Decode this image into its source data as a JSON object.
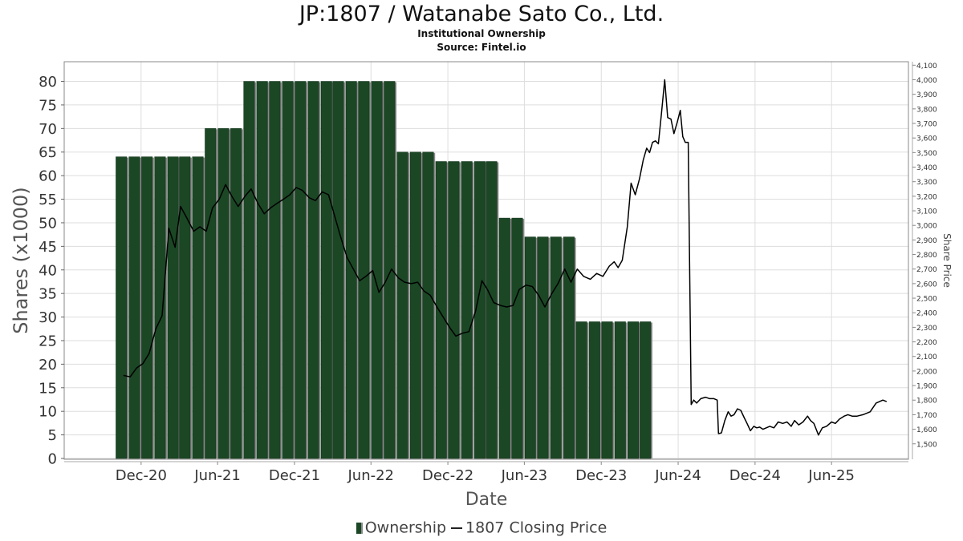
{
  "header": {
    "title": "JP:1807 / Watanabe Sato Co., Ltd.",
    "subtitle": "Institutional Ownership",
    "source": "Source: Fintel.io"
  },
  "legend": {
    "ownership_label": "Ownership",
    "price_label": "1807 Closing Price"
  },
  "colors": {
    "bar": "#1b4725",
    "bar_shadow": "#8a8a8a",
    "line": "#000000",
    "grid": "#dddddd"
  },
  "chart_data": {
    "type": "bar",
    "title": "JP:1807 / Watanabe Sato Co., Ltd.",
    "xlabel": "Date",
    "ylabel": "Shares (x1000)",
    "y2label": "Share Price",
    "ylim": [
      0,
      84
    ],
    "y2lim": [
      1430,
      4100
    ],
    "yticks": [
      0,
      5,
      10,
      15,
      20,
      25,
      30,
      35,
      40,
      45,
      50,
      55,
      60,
      65,
      70,
      75,
      80
    ],
    "y2ticks": [
      1500,
      1600,
      1700,
      1800,
      1900,
      2000,
      2100,
      2200,
      2300,
      2400,
      2500,
      2600,
      2700,
      2800,
      2900,
      3000,
      3100,
      3200,
      3300,
      3400,
      3500,
      3600,
      3700,
      3800,
      3900,
      4000,
      4100
    ],
    "y2tick_labels": [
      "1,500",
      "1,600",
      "1,700",
      "1,800",
      "1,900",
      "2,000",
      "2,100",
      "2,200",
      "2,300",
      "2,400",
      "2,500",
      "2,600",
      "2,700",
      "2,800",
      "2,900",
      "3,000",
      "3,100",
      "3,200",
      "3,300",
      "3,400",
      "3,500",
      "3,600",
      "3,700",
      "3,800",
      "3,900",
      "4,000",
      "4,100"
    ],
    "xlim": [
      "2020-06-01",
      "2025-12-01"
    ],
    "xticks": [
      {
        "label": "Dec-20",
        "date": "2020-12-01"
      },
      {
        "label": "Jun-21",
        "date": "2021-06-01"
      },
      {
        "label": "Dec-21",
        "date": "2021-12-01"
      },
      {
        "label": "Jun-22",
        "date": "2022-06-01"
      },
      {
        "label": "Dec-22",
        "date": "2022-12-01"
      },
      {
        "label": "Jun-23",
        "date": "2023-06-01"
      },
      {
        "label": "Dec-23",
        "date": "2023-12-01"
      },
      {
        "label": "Jun-24",
        "date": "2024-06-01"
      },
      {
        "label": "Dec-24",
        "date": "2024-12-01"
      },
      {
        "label": "Jun-25",
        "date": "2025-06-01"
      }
    ],
    "ownership": {
      "name": "Ownership",
      "dates": [
        "2020-10-15",
        "2020-11-15",
        "2020-12-15",
        "2021-01-15",
        "2021-02-15",
        "2021-03-15",
        "2021-04-15",
        "2021-05-15",
        "2021-06-15",
        "2021-07-15",
        "2021-08-15",
        "2021-09-15",
        "2021-10-15",
        "2021-11-15",
        "2021-12-15",
        "2022-01-15",
        "2022-02-15",
        "2022-03-15",
        "2022-04-15",
        "2022-05-15",
        "2022-06-15",
        "2022-07-15",
        "2022-08-15",
        "2022-09-15",
        "2022-10-15",
        "2022-11-15",
        "2022-12-15",
        "2023-01-15",
        "2023-02-15",
        "2023-03-15",
        "2023-04-15",
        "2023-05-15",
        "2023-06-15",
        "2023-07-15",
        "2023-08-15",
        "2023-09-15",
        "2023-10-15",
        "2023-11-15",
        "2023-12-15",
        "2024-01-15",
        "2024-02-15",
        "2024-03-15"
      ],
      "values": [
        64,
        64,
        64,
        64,
        64,
        64,
        64,
        70,
        70,
        70,
        80,
        80,
        80,
        80,
        80,
        80,
        80,
        80,
        80,
        80,
        80,
        80,
        65,
        65,
        65,
        63,
        63,
        63,
        63,
        63,
        51,
        51,
        47,
        47,
        47,
        47,
        29,
        29,
        29,
        29,
        29,
        29
      ]
    },
    "price": {
      "name": "1807 Closing Price",
      "points": [
        [
          "2020-10-20",
          1970
        ],
        [
          "2020-11-05",
          1960
        ],
        [
          "2020-11-20",
          2020
        ],
        [
          "2020-12-05",
          2050
        ],
        [
          "2020-12-20",
          2120
        ],
        [
          "2021-01-05",
          2290
        ],
        [
          "2021-01-20",
          2380
        ],
        [
          "2021-02-05",
          2980
        ],
        [
          "2021-02-20",
          2850
        ],
        [
          "2021-03-05",
          3130
        ],
        [
          "2021-03-20",
          3050
        ],
        [
          "2021-04-05",
          2960
        ],
        [
          "2021-04-20",
          2990
        ],
        [
          "2021-05-05",
          2960
        ],
        [
          "2021-05-20",
          3120
        ],
        [
          "2021-06-05",
          3180
        ],
        [
          "2021-06-20",
          3280
        ],
        [
          "2021-07-05",
          3200
        ],
        [
          "2021-07-20",
          3130
        ],
        [
          "2021-08-05",
          3200
        ],
        [
          "2021-08-20",
          3250
        ],
        [
          "2021-09-05",
          3150
        ],
        [
          "2021-09-20",
          3080
        ],
        [
          "2021-10-05",
          3120
        ],
        [
          "2021-10-20",
          3150
        ],
        [
          "2021-11-05",
          3180
        ],
        [
          "2021-11-20",
          3210
        ],
        [
          "2021-12-05",
          3260
        ],
        [
          "2021-12-20",
          3240
        ],
        [
          "2022-01-05",
          3190
        ],
        [
          "2022-01-20",
          3170
        ],
        [
          "2022-02-05",
          3230
        ],
        [
          "2022-02-20",
          3210
        ],
        [
          "2022-03-05",
          3080
        ],
        [
          "2022-03-20",
          2930
        ],
        [
          "2022-04-05",
          2780
        ],
        [
          "2022-04-20",
          2700
        ],
        [
          "2022-05-05",
          2620
        ],
        [
          "2022-05-20",
          2650
        ],
        [
          "2022-06-05",
          2690
        ],
        [
          "2022-06-20",
          2540
        ],
        [
          "2022-07-05",
          2610
        ],
        [
          "2022-07-20",
          2700
        ],
        [
          "2022-08-05",
          2640
        ],
        [
          "2022-08-20",
          2610
        ],
        [
          "2022-09-05",
          2600
        ],
        [
          "2022-09-20",
          2610
        ],
        [
          "2022-10-05",
          2550
        ],
        [
          "2022-10-20",
          2520
        ],
        [
          "2022-11-05",
          2440
        ],
        [
          "2022-11-20",
          2370
        ],
        [
          "2022-12-05",
          2300
        ],
        [
          "2022-12-20",
          2240
        ],
        [
          "2023-01-05",
          2260
        ],
        [
          "2023-01-20",
          2270
        ],
        [
          "2023-02-05",
          2410
        ],
        [
          "2023-02-20",
          2620
        ],
        [
          "2023-03-05",
          2560
        ],
        [
          "2023-03-20",
          2470
        ],
        [
          "2023-04-05",
          2450
        ],
        [
          "2023-04-20",
          2440
        ],
        [
          "2023-05-05",
          2450
        ],
        [
          "2023-05-20",
          2560
        ],
        [
          "2023-06-05",
          2590
        ],
        [
          "2023-06-20",
          2580
        ],
        [
          "2023-07-05",
          2520
        ],
        [
          "2023-07-20",
          2440
        ],
        [
          "2023-08-05",
          2530
        ],
        [
          "2023-08-20",
          2600
        ],
        [
          "2023-09-05",
          2700
        ],
        [
          "2023-09-20",
          2610
        ],
        [
          "2023-10-05",
          2700
        ],
        [
          "2023-10-20",
          2650
        ],
        [
          "2023-11-05",
          2630
        ],
        [
          "2023-11-20",
          2670
        ],
        [
          "2023-12-05",
          2650
        ],
        [
          "2023-12-20",
          2720
        ],
        [
          "2024-01-01",
          2750
        ],
        [
          "2024-01-10",
          2710
        ],
        [
          "2024-01-20",
          2760
        ],
        [
          "2024-02-01",
          2990
        ],
        [
          "2024-02-10",
          3290
        ],
        [
          "2024-02-20",
          3210
        ],
        [
          "2024-03-01",
          3320
        ],
        [
          "2024-03-10",
          3450
        ],
        [
          "2024-03-18",
          3530
        ],
        [
          "2024-03-25",
          3500
        ],
        [
          "2024-04-01",
          3570
        ],
        [
          "2024-04-08",
          3580
        ],
        [
          "2024-04-15",
          3560
        ],
        [
          "2024-04-22",
          3760
        ],
        [
          "2024-04-30",
          4000
        ],
        [
          "2024-05-07",
          3740
        ],
        [
          "2024-05-15",
          3730
        ],
        [
          "2024-05-22",
          3630
        ],
        [
          "2024-05-30",
          3710
        ],
        [
          "2024-06-06",
          3790
        ],
        [
          "2024-06-12",
          3610
        ],
        [
          "2024-06-18",
          3570
        ],
        [
          "2024-06-25",
          3570
        ],
        [
          "2024-07-02",
          1770
        ],
        [
          "2024-07-08",
          1800
        ],
        [
          "2024-07-15",
          1780
        ],
        [
          "2024-07-25",
          1810
        ],
        [
          "2024-08-05",
          1820
        ],
        [
          "2024-08-15",
          1810
        ],
        [
          "2024-08-25",
          1810
        ],
        [
          "2024-09-02",
          1800
        ],
        [
          "2024-09-05",
          1570
        ],
        [
          "2024-09-12",
          1575
        ],
        [
          "2024-09-20",
          1660
        ],
        [
          "2024-09-28",
          1720
        ],
        [
          "2024-10-05",
          1690
        ],
        [
          "2024-10-12",
          1700
        ],
        [
          "2024-10-20",
          1740
        ],
        [
          "2024-10-28",
          1730
        ],
        [
          "2024-11-05",
          1680
        ],
        [
          "2024-11-12",
          1640
        ],
        [
          "2024-11-20",
          1590
        ],
        [
          "2024-11-28",
          1620
        ],
        [
          "2024-12-05",
          1610
        ],
        [
          "2024-12-12",
          1615
        ],
        [
          "2024-12-20",
          1600
        ],
        [
          "2025-01-05",
          1620
        ],
        [
          "2025-01-15",
          1610
        ],
        [
          "2025-01-25",
          1650
        ],
        [
          "2025-02-05",
          1640
        ],
        [
          "2025-02-15",
          1650
        ],
        [
          "2025-02-25",
          1620
        ],
        [
          "2025-03-05",
          1660
        ],
        [
          "2025-03-15",
          1630
        ],
        [
          "2025-03-25",
          1650
        ],
        [
          "2025-04-05",
          1690
        ],
        [
          "2025-04-12",
          1660
        ],
        [
          "2025-04-20",
          1640
        ],
        [
          "2025-05-01",
          1560
        ],
        [
          "2025-05-10",
          1610
        ],
        [
          "2025-05-20",
          1620
        ],
        [
          "2025-06-01",
          1650
        ],
        [
          "2025-06-10",
          1640
        ],
        [
          "2025-06-20",
          1670
        ],
        [
          "2025-07-01",
          1690
        ],
        [
          "2025-07-10",
          1700
        ],
        [
          "2025-07-20",
          1690
        ],
        [
          "2025-08-01",
          1690
        ],
        [
          "2025-08-15",
          1700
        ],
        [
          "2025-09-01",
          1720
        ],
        [
          "2025-09-15",
          1780
        ],
        [
          "2025-10-01",
          1800
        ],
        [
          "2025-10-10",
          1790
        ]
      ]
    }
  }
}
